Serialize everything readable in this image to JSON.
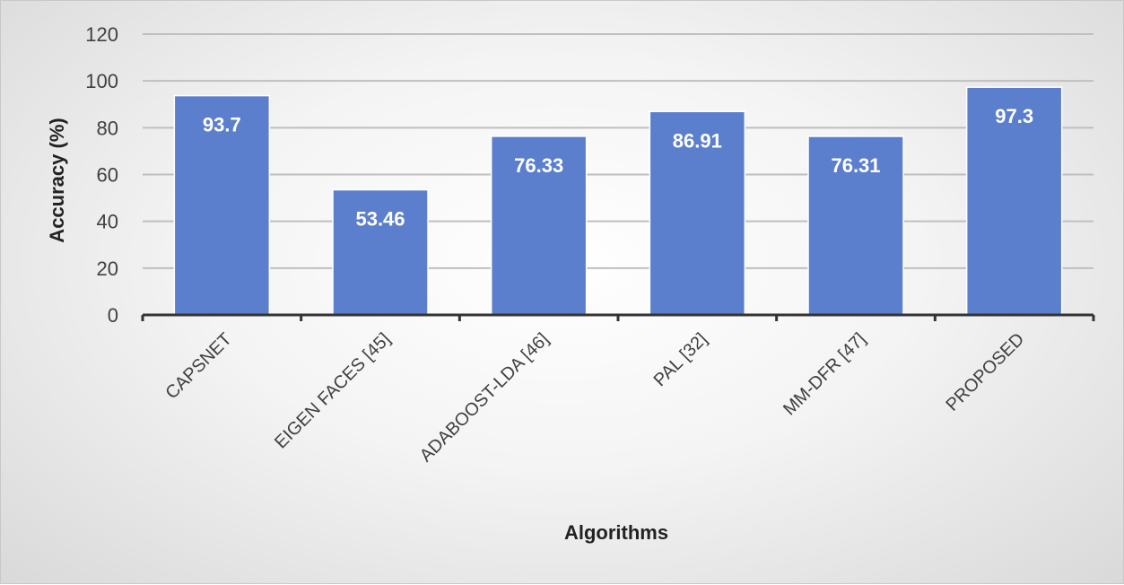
{
  "chart_data": {
    "type": "bar",
    "categories": [
      "CAPSNET",
      "EIGEN FACES [45]",
      "ADABOOST-LDA [46]",
      "PAL [32]",
      "MM-DFR [47]",
      "PROPOSED"
    ],
    "values": [
      93.7,
      53.46,
      76.33,
      86.91,
      76.31,
      97.3
    ],
    "data_labels": [
      "93.7",
      "53.46",
      "76.33",
      "86.91",
      "76.31",
      "97.3"
    ],
    "xlabel": "Algorithms",
    "ylabel": "Accuracy (%)",
    "ylim": [
      0,
      120
    ],
    "yticks": [
      0,
      20,
      40,
      60,
      80,
      100,
      120
    ],
    "grid": true,
    "legend": "none",
    "colors": {
      "bar": "#5b7fcc",
      "bar_edge": "#ffffff",
      "grid": "#bfbfbf",
      "axis": "#333333"
    }
  }
}
